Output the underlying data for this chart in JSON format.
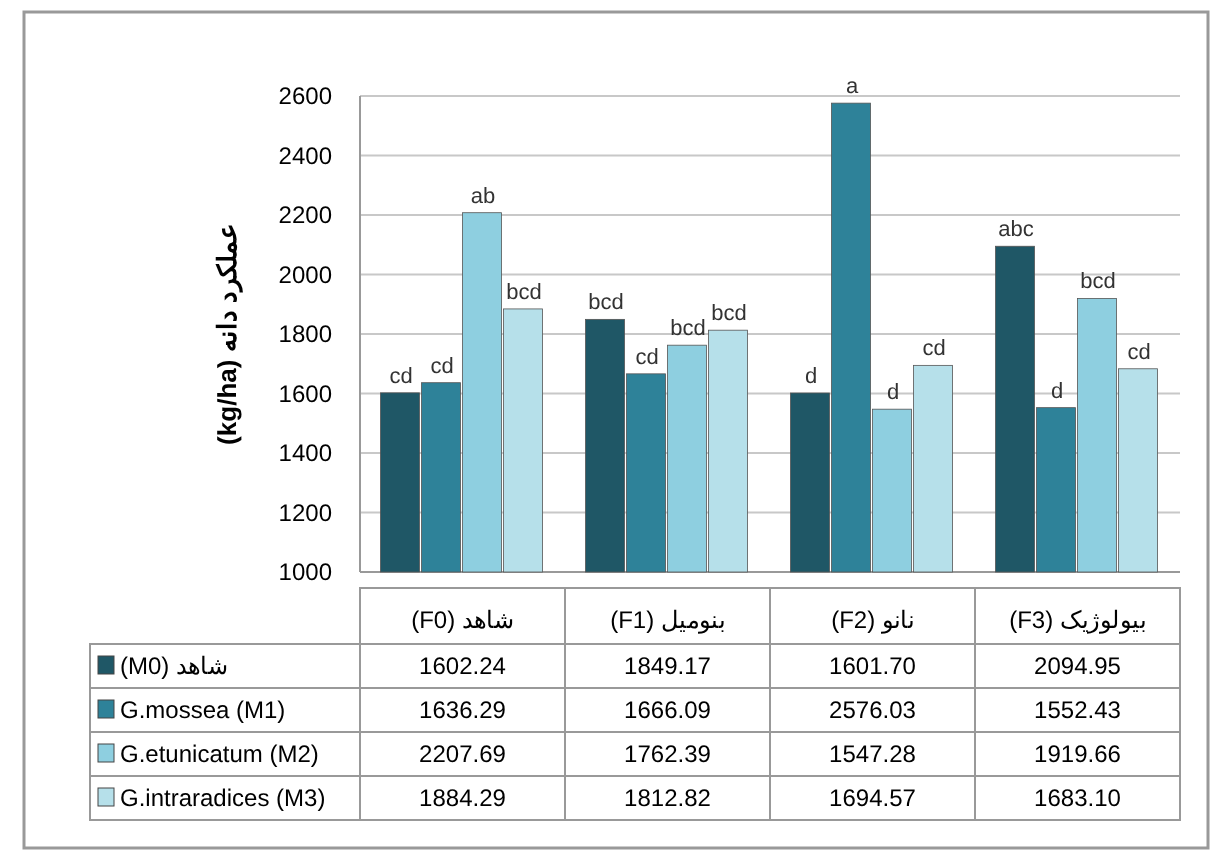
{
  "chart_data": {
    "type": "bar",
    "ylabel": "عملکرد دانه (kg/ha)",
    "categories": [
      "شاهد (F0)",
      "بنومیل (F1)",
      "نانو (F2)",
      "بیولوژیک (F3)"
    ],
    "series": [
      {
        "name": "شاهد (M0)",
        "color": "#1f5766",
        "values": [
          1602.24,
          1849.17,
          1601.7,
          2094.95
        ]
      },
      {
        "name": "G.mossea (M1)",
        "color": "#2e8299",
        "values": [
          1636.29,
          1666.09,
          2576.03,
          1552.43
        ]
      },
      {
        "name": "G.etunicatum (M2)",
        "color": "#8ecfe0",
        "values": [
          2207.69,
          1762.39,
          1547.28,
          1919.66
        ]
      },
      {
        "name": "G.intraradices (M3)",
        "color": "#b6e0ea",
        "values": [
          1884.29,
          1812.82,
          1694.57,
          1683.1
        ]
      }
    ],
    "annotations": [
      "cd",
      "bcd",
      "d",
      "abc",
      "cd",
      "cd",
      "a",
      "d",
      "ab",
      "bcd",
      "d",
      "bcd",
      "bcd",
      "bcd",
      "cd",
      "cd",
      "1602.24",
      "1849.17",
      "1601.70",
      "2094.95",
      "1636.29",
      "1666.09",
      "2576.03",
      "1552.43",
      "2207.69",
      "1762.39",
      "1547.28",
      "1919.66",
      "1884.29",
      "1812.82",
      "1694.57",
      "1683.10"
    ],
    "ylim": [
      1000,
      2600
    ],
    "yticks": [
      1000,
      1200,
      1400,
      1600,
      1800,
      2000,
      2200,
      2400,
      2600
    ],
    "grid": "y",
    "legend": "bottom"
  }
}
